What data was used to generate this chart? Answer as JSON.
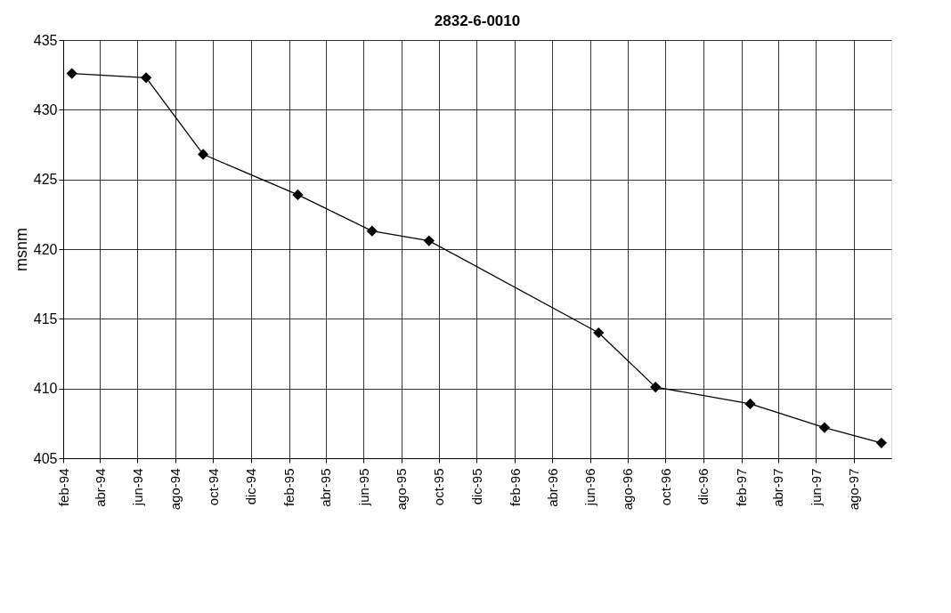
{
  "chart_data": {
    "type": "line",
    "title": "2832-6-0010",
    "ylabel": "msnm",
    "x": [
      "1994-02-15",
      "1994-06-15",
      "1994-09-15",
      "1995-02-15",
      "1995-06-15",
      "1995-09-15",
      "1996-06-15",
      "1996-09-15",
      "1997-02-15",
      "1997-06-15",
      "1997-09-15"
    ],
    "series": [
      {
        "color": "#000000",
        "values": [
          432.6,
          432.3,
          426.8,
          423.9,
          421.3,
          420.6,
          414.0,
          410.1,
          408.9,
          407.2,
          406.1
        ]
      }
    ],
    "xlim": [
      "1994-02-01",
      "1997-10-01"
    ],
    "xticks": [
      {
        "value": "1994-02-01",
        "label": "feb-94"
      },
      {
        "value": "1994-04-01",
        "label": "abr-94"
      },
      {
        "value": "1994-06-01",
        "label": "jun-94"
      },
      {
        "value": "1994-08-01",
        "label": "ago-94"
      },
      {
        "value": "1994-10-01",
        "label": "oct-94"
      },
      {
        "value": "1994-12-01",
        "label": "dic-94"
      },
      {
        "value": "1995-02-01",
        "label": "feb-95"
      },
      {
        "value": "1995-04-01",
        "label": "abr-95"
      },
      {
        "value": "1995-06-01",
        "label": "jun-95"
      },
      {
        "value": "1995-08-01",
        "label": "ago-95"
      },
      {
        "value": "1995-10-01",
        "label": "oct-95"
      },
      {
        "value": "1995-12-01",
        "label": "dic-95"
      },
      {
        "value": "1996-02-01",
        "label": "feb-96"
      },
      {
        "value": "1996-04-01",
        "label": "abr-96"
      },
      {
        "value": "1996-06-01",
        "label": "jun-96"
      },
      {
        "value": "1996-08-01",
        "label": "ago-96"
      },
      {
        "value": "1996-10-01",
        "label": "oct-96"
      },
      {
        "value": "1996-12-01",
        "label": "dic-96"
      },
      {
        "value": "1997-02-01",
        "label": "feb-97"
      },
      {
        "value": "1997-04-01",
        "label": "abr-97"
      },
      {
        "value": "1997-06-01",
        "label": "jun-97"
      },
      {
        "value": "1997-08-01",
        "label": "ago-97"
      }
    ],
    "ylim": [
      405,
      435
    ],
    "yticks": [
      405,
      410,
      415,
      420,
      425,
      430,
      435
    ],
    "grid": true,
    "marker": "diamond",
    "line_style": "solid"
  }
}
